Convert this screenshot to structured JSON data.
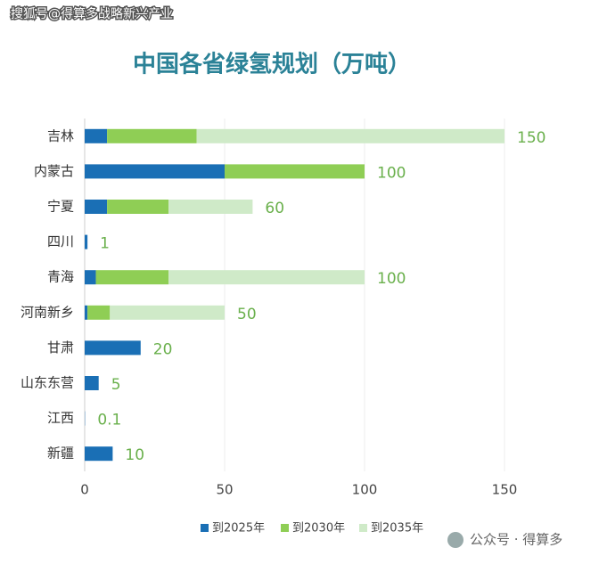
{
  "watermark": "搜狐号@得算多战略新兴产业",
  "footer": "公众号 · 得算多",
  "chart_data": {
    "type": "stacked-barh",
    "title": "中国各省绿氢规划（万吨）",
    "categories": [
      "吉林",
      "内蒙古",
      "宁夏",
      "四川",
      "青海",
      "河南新乡",
      "甘肃",
      "山东东营",
      "江西",
      "新疆"
    ],
    "series": [
      {
        "name": "到2025年",
        "color": "#1a6fb5",
        "values": [
          8,
          50,
          8,
          1,
          4,
          1,
          20,
          5,
          0.1,
          10
        ]
      },
      {
        "name": "到2030年",
        "color": "#8fce55",
        "values": [
          32,
          50,
          22,
          0,
          26,
          8,
          0,
          0,
          0,
          0
        ]
      },
      {
        "name": "到2035年",
        "color": "#cfeac8",
        "values": [
          110,
          0,
          30,
          0,
          70,
          41,
          0,
          0,
          0,
          0
        ]
      }
    ],
    "totals": [
      150,
      100,
      60,
      1,
      100,
      50,
      20,
      5,
      0.1,
      10
    ],
    "xlim": [
      0,
      150
    ],
    "xticks": [
      0,
      50,
      100,
      150
    ],
    "grid": true,
    "legend": "bottom"
  }
}
